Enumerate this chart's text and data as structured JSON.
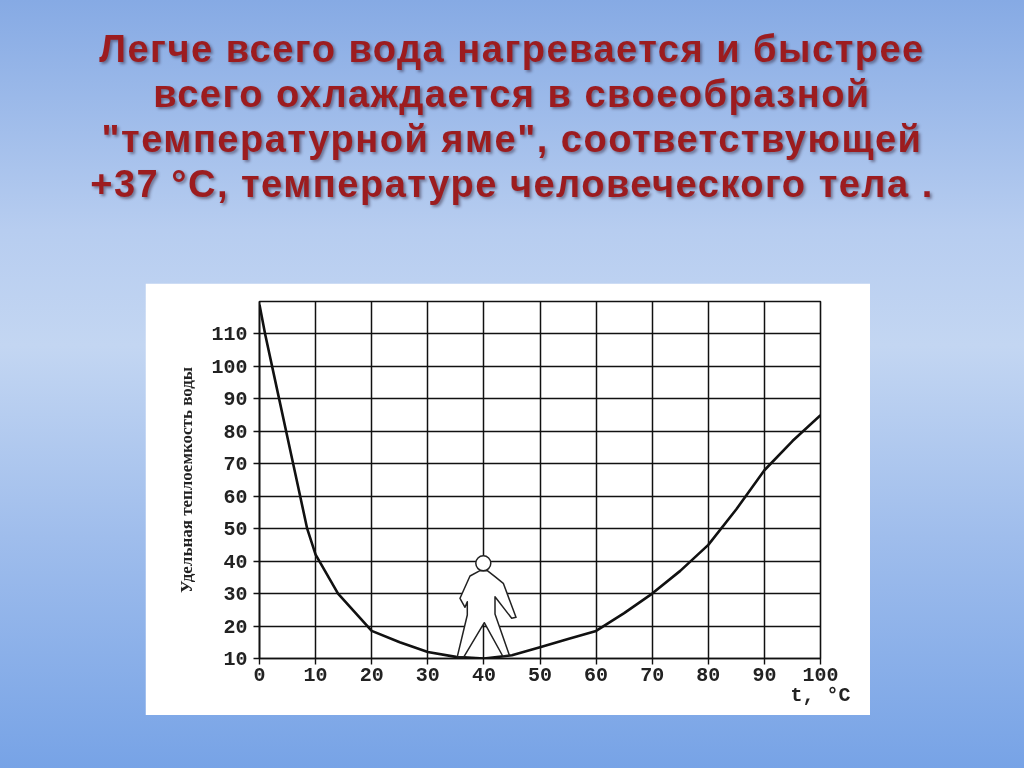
{
  "chart_data": {
    "type": "line",
    "title": "Легче всего вода нагревается и быстрее\nвсего охлаждается в своеобразной\n\"температурной яме\", соответствующей\n+37 °С, температуре человеческого тела .",
    "xlabel": "t, °C",
    "ylabel": "Удельная теплоемкость воды",
    "x": [
      0,
      1,
      3.5,
      6,
      8.5,
      10,
      14,
      20,
      25,
      30,
      35,
      40,
      45,
      50,
      55,
      60,
      65,
      70,
      75,
      80,
      85,
      90,
      95,
      100
    ],
    "series": [
      {
        "color": "#111111",
        "values": [
          119,
          110,
          90,
          70,
          50,
          42,
          30,
          18.5,
          15,
          12,
          10.5,
          10,
          11,
          13.5,
          16,
          18.5,
          24,
          30,
          37,
          45,
          56,
          68,
          77,
          85
        ]
      }
    ],
    "xlim": [
      0,
      100
    ],
    "ylim": [
      10,
      120
    ],
    "xticks": [
      0,
      10,
      20,
      30,
      40,
      50,
      60,
      70,
      80,
      90,
      100
    ],
    "yticks": [
      10,
      20,
      30,
      40,
      50,
      60,
      70,
      80,
      90,
      100,
      110
    ],
    "grid": true,
    "line_style": "solid"
  }
}
